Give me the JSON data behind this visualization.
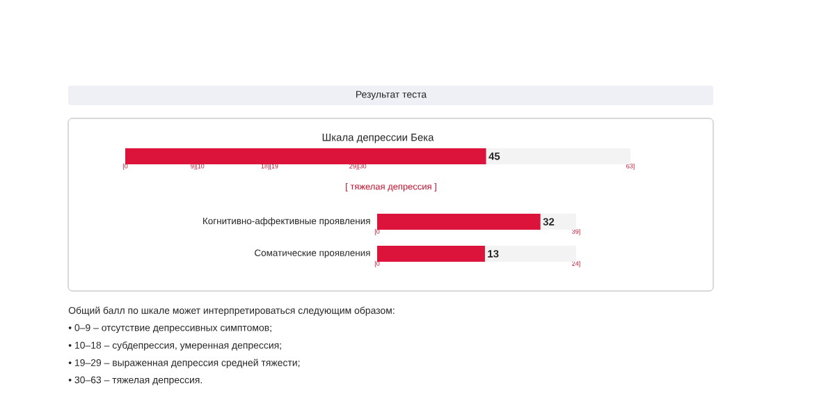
{
  "chart_data": [
    {
      "type": "other",
      "title": "Результат теста",
      "annotations": [
        "Общий балл по шкале может интерпретироваться следующим образом:",
        "• 0–9 – отсутствие депрессивных симптомов;",
        "• 10–18 – субдепрессия, умеренная депрессия;",
        "• 19–29 – выраженная депрессия средней тяжести;",
        "• 30–63 – тяжелая депрессия."
      ]
    },
    {
      "type": "bar",
      "orientation": "horizontal",
      "title": "Шкала депрессии Бека",
      "categories": [
        null
      ],
      "values": [
        45
      ],
      "value_labels": [
        "45"
      ],
      "color": "#dc143c",
      "xlim": [
        0,
        63
      ],
      "xticks": [
        {
          "value": 0,
          "label": "[0"
        },
        {
          "value": 9,
          "label": "9][10"
        },
        {
          "value": 18,
          "label": "18][19"
        },
        {
          "value": 29,
          "label": "29][30"
        },
        {
          "value": 63,
          "label": "63]"
        }
      ],
      "annotations": [
        "[ тяжелая депрессия ]"
      ]
    },
    {
      "type": "bar",
      "orientation": "horizontal",
      "categories": [
        "Когнитивно-аффективные проявления"
      ],
      "values": [
        32
      ],
      "value_labels": [
        "32"
      ],
      "color": "#dc143c",
      "xlim": [
        0,
        39
      ],
      "xticks": [
        {
          "value": 0,
          "label": "[0"
        },
        {
          "value": 39,
          "label": "39]"
        }
      ]
    },
    {
      "type": "bar",
      "orientation": "horizontal",
      "categories": [
        "Соматические проявления"
      ],
      "values": [
        13
      ],
      "value_labels": [
        "13"
      ],
      "color": "#dc143c",
      "xlim": [
        0,
        24
      ],
      "xticks": [
        {
          "value": 0,
          "label": "[0"
        },
        {
          "value": 24,
          "label": "24]"
        }
      ]
    }
  ]
}
